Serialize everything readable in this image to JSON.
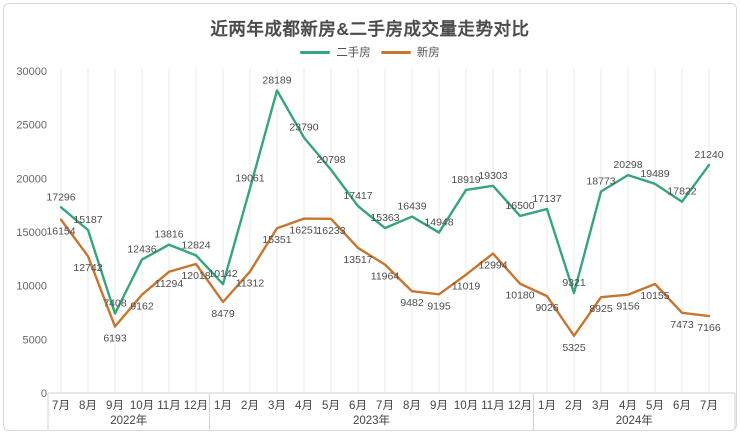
{
  "chart_data": {
    "type": "line",
    "title": "近两年成都新房&二手房成交量走势对比",
    "x": [
      "7月",
      "8月",
      "9月",
      "10月",
      "11月",
      "12月",
      "1月",
      "2月",
      "3月",
      "4月",
      "5月",
      "6月",
      "7月",
      "8月",
      "9月",
      "10月",
      "11月",
      "12月",
      "1月",
      "2月",
      "3月",
      "4月",
      "5月",
      "6月",
      "7月"
    ],
    "year_groups": [
      {
        "label": "2022年",
        "months": 6
      },
      {
        "label": "2023年",
        "months": 12
      },
      {
        "label": "2024年",
        "months": 7
      }
    ],
    "series": [
      {
        "name": "二手房",
        "color": "#35a57c",
        "values": [
          17296,
          15187,
          7408,
          12436,
          13816,
          12824,
          10142,
          19061,
          28189,
          23790,
          20798,
          17417,
          15363,
          16439,
          14948,
          18919,
          19303,
          16500,
          17137,
          9321,
          18773,
          20298,
          19489,
          17822,
          21240
        ]
      },
      {
        "name": "新房",
        "color": "#c8762f",
        "values": [
          16154,
          12742,
          6193,
          9162,
          11294,
          12018,
          8479,
          11312,
          15351,
          16251,
          16233,
          13517,
          11964,
          9482,
          9195,
          11019,
          12994,
          10180,
          9026,
          5325,
          8925,
          9156,
          10155,
          7473,
          7166
        ]
      }
    ],
    "ylim": [
      0,
      30000
    ],
    "yticks": [
      0,
      5000,
      10000,
      15000,
      20000,
      25000,
      30000
    ],
    "grid": "vertical",
    "legend_position": "top"
  }
}
